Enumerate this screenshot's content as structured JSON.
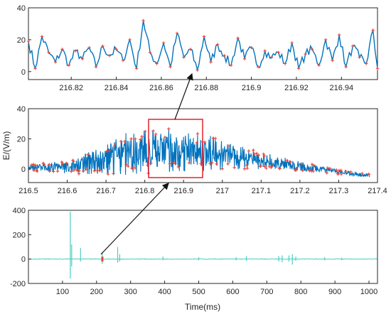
{
  "chart_data": [
    {
      "type": "line",
      "panel": "top-zoom",
      "xlim": [
        216.801,
        216.956
      ],
      "ylim": [
        -5,
        40
      ],
      "xticks": [
        "216.82",
        "216.84",
        "216.86",
        "216.88",
        "216.9",
        "216.92",
        "216.94"
      ],
      "yticks": [
        "0",
        "20",
        "40"
      ],
      "xlabel": "",
      "ylabel": "",
      "grid": false,
      "series": [
        {
          "color": "#0072bd",
          "marker_color": "#e8463a",
          "x": [
            216.801,
            216.804,
            216.807,
            216.81,
            216.813,
            216.816,
            216.819,
            216.822,
            216.825,
            216.828,
            216.831,
            216.834,
            216.837,
            216.84,
            216.843,
            216.846,
            216.849,
            216.852,
            216.855,
            216.858,
            216.861,
            216.864,
            216.867,
            216.87,
            216.873,
            216.876,
            216.879,
            216.882,
            216.885,
            216.888,
            216.891,
            216.894,
            216.897,
            216.9,
            216.903,
            216.906,
            216.909,
            216.912,
            216.915,
            216.918,
            216.921,
            216.924,
            216.927,
            216.93,
            216.933,
            216.936,
            216.939,
            216.942,
            216.945,
            216.948,
            216.951,
            216.954,
            216.956
          ],
          "y": [
            19,
            2,
            22,
            12,
            6,
            14,
            4,
            13,
            8,
            15,
            3,
            16,
            10,
            14,
            7,
            20,
            2,
            32,
            12,
            5,
            18,
            3,
            24,
            9,
            14,
            1,
            22,
            6,
            17,
            10,
            4,
            21,
            8,
            15,
            3,
            13,
            9,
            12,
            5,
            18,
            2,
            11,
            14,
            4,
            20,
            7,
            23,
            3,
            16,
            9,
            5,
            26,
            2
          ]
        }
      ]
    },
    {
      "type": "line",
      "panel": "middle-burst",
      "xlim": [
        216.5,
        217.4
      ],
      "ylim": [
        -9,
        40
      ],
      "xticks": [
        "216.5",
        "216.6",
        "216.7",
        "216.8",
        "216.9",
        "217",
        "217.1",
        "217.2",
        "217.3",
        "217.4"
      ],
      "yticks": [
        "0",
        "20",
        "40"
      ],
      "xlabel": "",
      "ylabel": "E/(V/m)",
      "grid": false,
      "envelope_x": [
        216.5,
        216.6,
        216.7,
        216.75,
        216.8,
        216.85,
        216.9,
        216.95,
        217.0,
        217.05,
        217.1,
        217.2,
        217.3,
        217.38
      ],
      "envelope_upper": [
        3,
        6,
        16,
        24,
        26,
        28,
        26,
        24,
        20,
        16,
        12,
        5,
        0,
        -3
      ],
      "envelope_lower": [
        -2,
        -3,
        -4,
        -4,
        -3,
        -3,
        -2,
        -2,
        -1,
        0,
        0,
        -2,
        -4,
        -6
      ],
      "series": [
        {
          "color": "#0072bd",
          "marker_color": "#e8463a"
        }
      ]
    },
    {
      "type": "line",
      "panel": "bottom-overview",
      "xlim": [
        0,
        1025
      ],
      "ylim": [
        -200,
        400
      ],
      "xticks": [
        "100",
        "200",
        "300",
        "400",
        "500",
        "600",
        "700",
        "800",
        "900",
        "1000"
      ],
      "yticks": [
        "-200",
        "0",
        "200",
        "400"
      ],
      "xlabel": "Time(ms)",
      "ylabel": "",
      "grid": false,
      "spikes": [
        {
          "x": 123,
          "up": 390,
          "down": -160
        },
        {
          "x": 127,
          "up": 120,
          "down": -60
        },
        {
          "x": 153,
          "up": 90,
          "down": -20
        },
        {
          "x": 217,
          "up": 60,
          "down": -40
        },
        {
          "x": 262,
          "up": 100,
          "down": -30
        },
        {
          "x": 268,
          "up": 40,
          "down": -20
        },
        {
          "x": 395,
          "up": 20,
          "down": -10
        },
        {
          "x": 500,
          "up": 15,
          "down": -10
        },
        {
          "x": 610,
          "up": 15,
          "down": -10
        },
        {
          "x": 640,
          "up": 25,
          "down": -15
        },
        {
          "x": 735,
          "up": 25,
          "down": -20
        },
        {
          "x": 745,
          "up": 30,
          "down": -25
        },
        {
          "x": 765,
          "up": 30,
          "down": -20
        },
        {
          "x": 775,
          "up": 40,
          "down": -45
        },
        {
          "x": 785,
          "up": 20,
          "down": -15
        },
        {
          "x": 870,
          "up": 15,
          "down": -10
        },
        {
          "x": 920,
          "up": 12,
          "down": -8
        }
      ],
      "series": [
        {
          "color": "#4ecdc4",
          "marker_color": "#e8463a"
        }
      ]
    }
  ]
}
